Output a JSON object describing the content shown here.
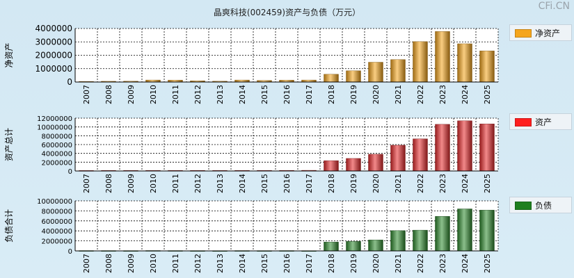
{
  "title": "晶爽科技(002459)资产与负债（万元）",
  "watermark": "CFi.CN",
  "chart_data": [
    {
      "type": "bar",
      "ylabel": "净资产",
      "legend": "净资产",
      "color": "#f5a51c",
      "ylim": [
        0,
        4000000
      ],
      "yticks": [
        0,
        1000000,
        2000000,
        3000000,
        4000000
      ],
      "categories": [
        "2007",
        "2008",
        "2009",
        "2010",
        "2011",
        "2012",
        "2013",
        "2014",
        "2015",
        "2016",
        "2017",
        "2018",
        "2019",
        "2020",
        "2021",
        "2022",
        "2023",
        "2024",
        "2025"
      ],
      "values": [
        40000,
        55000,
        60000,
        150000,
        140000,
        90000,
        60000,
        150000,
        120000,
        140000,
        150000,
        580000,
        840000,
        1480000,
        1680000,
        3020000,
        3780000,
        2860000,
        2330000
      ]
    },
    {
      "type": "bar",
      "ylabel": "资产总计",
      "legend": "资产",
      "color": "#e8292b",
      "ylim": [
        0,
        12000000
      ],
      "yticks": [
        0,
        2000000,
        4000000,
        6000000,
        8000000,
        10000000,
        12000000
      ],
      "categories": [
        "2007",
        "2008",
        "2009",
        "2010",
        "2011",
        "2012",
        "2013",
        "2014",
        "2015",
        "2016",
        "2017",
        "2018",
        "2019",
        "2020",
        "2021",
        "2022",
        "2023",
        "2024",
        "2025"
      ],
      "values": [
        100000,
        110000,
        110000,
        120000,
        120000,
        120000,
        110000,
        130000,
        130000,
        140000,
        150000,
        2350000,
        2850000,
        3800000,
        5850000,
        7300000,
        10600000,
        11400000,
        10700000
      ]
    },
    {
      "type": "bar",
      "ylabel": "负债合计",
      "legend": "负债",
      "color": "#2e8a2e",
      "ylim": [
        0,
        10000000
      ],
      "yticks": [
        0,
        2000000,
        4000000,
        6000000,
        8000000,
        10000000
      ],
      "categories": [
        "2007",
        "2008",
        "2009",
        "2010",
        "2011",
        "2012",
        "2013",
        "2014",
        "2015",
        "2016",
        "2017",
        "2018",
        "2019",
        "2020",
        "2021",
        "2022",
        "2023",
        "2024",
        "2025"
      ],
      "values": [
        60000,
        55000,
        50000,
        70000,
        60000,
        50000,
        40000,
        60000,
        50000,
        60000,
        40000,
        1780000,
        1900000,
        2200000,
        4050000,
        4150000,
        6900000,
        8400000,
        8150000
      ]
    }
  ]
}
